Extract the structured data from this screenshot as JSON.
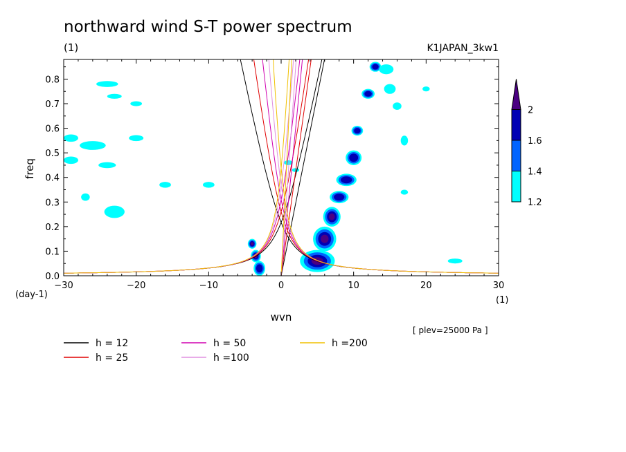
{
  "chart_data": {
    "type": "heatmap",
    "title": "northward wind S-T power spectrum",
    "subtitle_left": "(1)",
    "subtitle_right": "K1JAPAN_3kw1",
    "xlabel": "wvn",
    "ylabel": "freq",
    "x_unit_label": "(1)",
    "y_unit_label": "(day-1)",
    "xlim": [
      -30,
      30
    ],
    "ylim": [
      0,
      0.88
    ],
    "xticks": [
      -30,
      -20,
      -10,
      0,
      10,
      20,
      30
    ],
    "yticks": [
      0.0,
      0.1,
      0.2,
      0.3,
      0.4,
      0.5,
      0.6,
      0.7,
      0.8
    ],
    "annotation": "[ plev=25000 Pa ]",
    "colorbar": {
      "levels": [
        "1.2",
        "1.4",
        "1.6",
        "2"
      ],
      "colors": [
        "#00ffff",
        "#0064ff",
        "#0000b4",
        "#4b0082"
      ]
    },
    "series": [
      {
        "name": "h = 12",
        "h": 12,
        "color": "#000000"
      },
      {
        "name": "h = 25",
        "h": 25,
        "color": "#e00000"
      },
      {
        "name": "h = 50",
        "h": 50,
        "color": "#d000b0"
      },
      {
        "name": "h =100",
        "h": 100,
        "color": "#e090e0"
      },
      {
        "name": "h =200",
        "h": 200,
        "color": "#f0c000"
      }
    ],
    "contour_regions": [
      {
        "level": 4,
        "cx": 5.0,
        "cy": 0.06,
        "rx": 2.4,
        "ry": 0.045
      },
      {
        "level": 4,
        "cx": 6.0,
        "cy": 0.15,
        "rx": 1.6,
        "ry": 0.05
      },
      {
        "level": 4,
        "cx": 7.0,
        "cy": 0.24,
        "rx": 1.2,
        "ry": 0.04
      },
      {
        "level": 3,
        "cx": 8.0,
        "cy": 0.32,
        "rx": 1.3,
        "ry": 0.025
      },
      {
        "level": 3,
        "cx": 9.0,
        "cy": 0.39,
        "rx": 1.4,
        "ry": 0.025
      },
      {
        "level": 3,
        "cx": 10.0,
        "cy": 0.48,
        "rx": 1.1,
        "ry": 0.03
      },
      {
        "level": 3,
        "cx": 10.5,
        "cy": 0.59,
        "rx": 0.8,
        "ry": 0.02
      },
      {
        "level": 3,
        "cx": 12.0,
        "cy": 0.74,
        "rx": 0.9,
        "ry": 0.02
      },
      {
        "level": 3,
        "cx": 13.0,
        "cy": 0.85,
        "rx": 0.8,
        "ry": 0.02
      },
      {
        "level": 4,
        "cx": -4.0,
        "cy": 0.13,
        "rx": 0.6,
        "ry": 0.02
      },
      {
        "level": 4,
        "cx": -3.5,
        "cy": 0.08,
        "rx": 0.7,
        "ry": 0.025
      },
      {
        "level": 3,
        "cx": -3.0,
        "cy": 0.03,
        "rx": 0.8,
        "ry": 0.03
      },
      {
        "level": 1,
        "cx": -24.0,
        "cy": 0.78,
        "rx": 1.5,
        "ry": 0.012
      },
      {
        "level": 1,
        "cx": -23.0,
        "cy": 0.73,
        "rx": 1.0,
        "ry": 0.01
      },
      {
        "level": 1,
        "cx": -26.0,
        "cy": 0.53,
        "rx": 1.8,
        "ry": 0.018
      },
      {
        "level": 1,
        "cx": -29.0,
        "cy": 0.56,
        "rx": 1.0,
        "ry": 0.015
      },
      {
        "level": 1,
        "cx": -20.0,
        "cy": 0.56,
        "rx": 1.0,
        "ry": 0.012
      },
      {
        "level": 1,
        "cx": -29.0,
        "cy": 0.47,
        "rx": 1.0,
        "ry": 0.015
      },
      {
        "level": 1,
        "cx": -24.0,
        "cy": 0.45,
        "rx": 1.2,
        "ry": 0.012
      },
      {
        "level": 1,
        "cx": -27.0,
        "cy": 0.32,
        "rx": 0.6,
        "ry": 0.015
      },
      {
        "level": 1,
        "cx": -23.0,
        "cy": 0.26,
        "rx": 1.4,
        "ry": 0.025
      },
      {
        "level": 1,
        "cx": -16.0,
        "cy": 0.37,
        "rx": 0.8,
        "ry": 0.012
      },
      {
        "level": 1,
        "cx": -10.0,
        "cy": 0.37,
        "rx": 0.8,
        "ry": 0.012
      },
      {
        "level": 1,
        "cx": -20.0,
        "cy": 0.7,
        "rx": 0.8,
        "ry": 0.01
      },
      {
        "level": 1,
        "cx": 1.0,
        "cy": 0.46,
        "rx": 0.6,
        "ry": 0.01
      },
      {
        "level": 1,
        "cx": 2.0,
        "cy": 0.43,
        "rx": 0.5,
        "ry": 0.008
      },
      {
        "level": 1,
        "cx": 14.5,
        "cy": 0.84,
        "rx": 1.0,
        "ry": 0.02
      },
      {
        "level": 1,
        "cx": 15.0,
        "cy": 0.76,
        "rx": 0.8,
        "ry": 0.02
      },
      {
        "level": 1,
        "cx": 16.0,
        "cy": 0.69,
        "rx": 0.6,
        "ry": 0.015
      },
      {
        "level": 1,
        "cx": 17.0,
        "cy": 0.55,
        "rx": 0.5,
        "ry": 0.02
      },
      {
        "level": 1,
        "cx": 20.0,
        "cy": 0.76,
        "rx": 0.5,
        "ry": 0.01
      },
      {
        "level": 1,
        "cx": 17.0,
        "cy": 0.34,
        "rx": 0.5,
        "ry": 0.01
      },
      {
        "level": 1,
        "cx": 24.0,
        "cy": 0.06,
        "rx": 1.0,
        "ry": 0.01
      }
    ]
  }
}
